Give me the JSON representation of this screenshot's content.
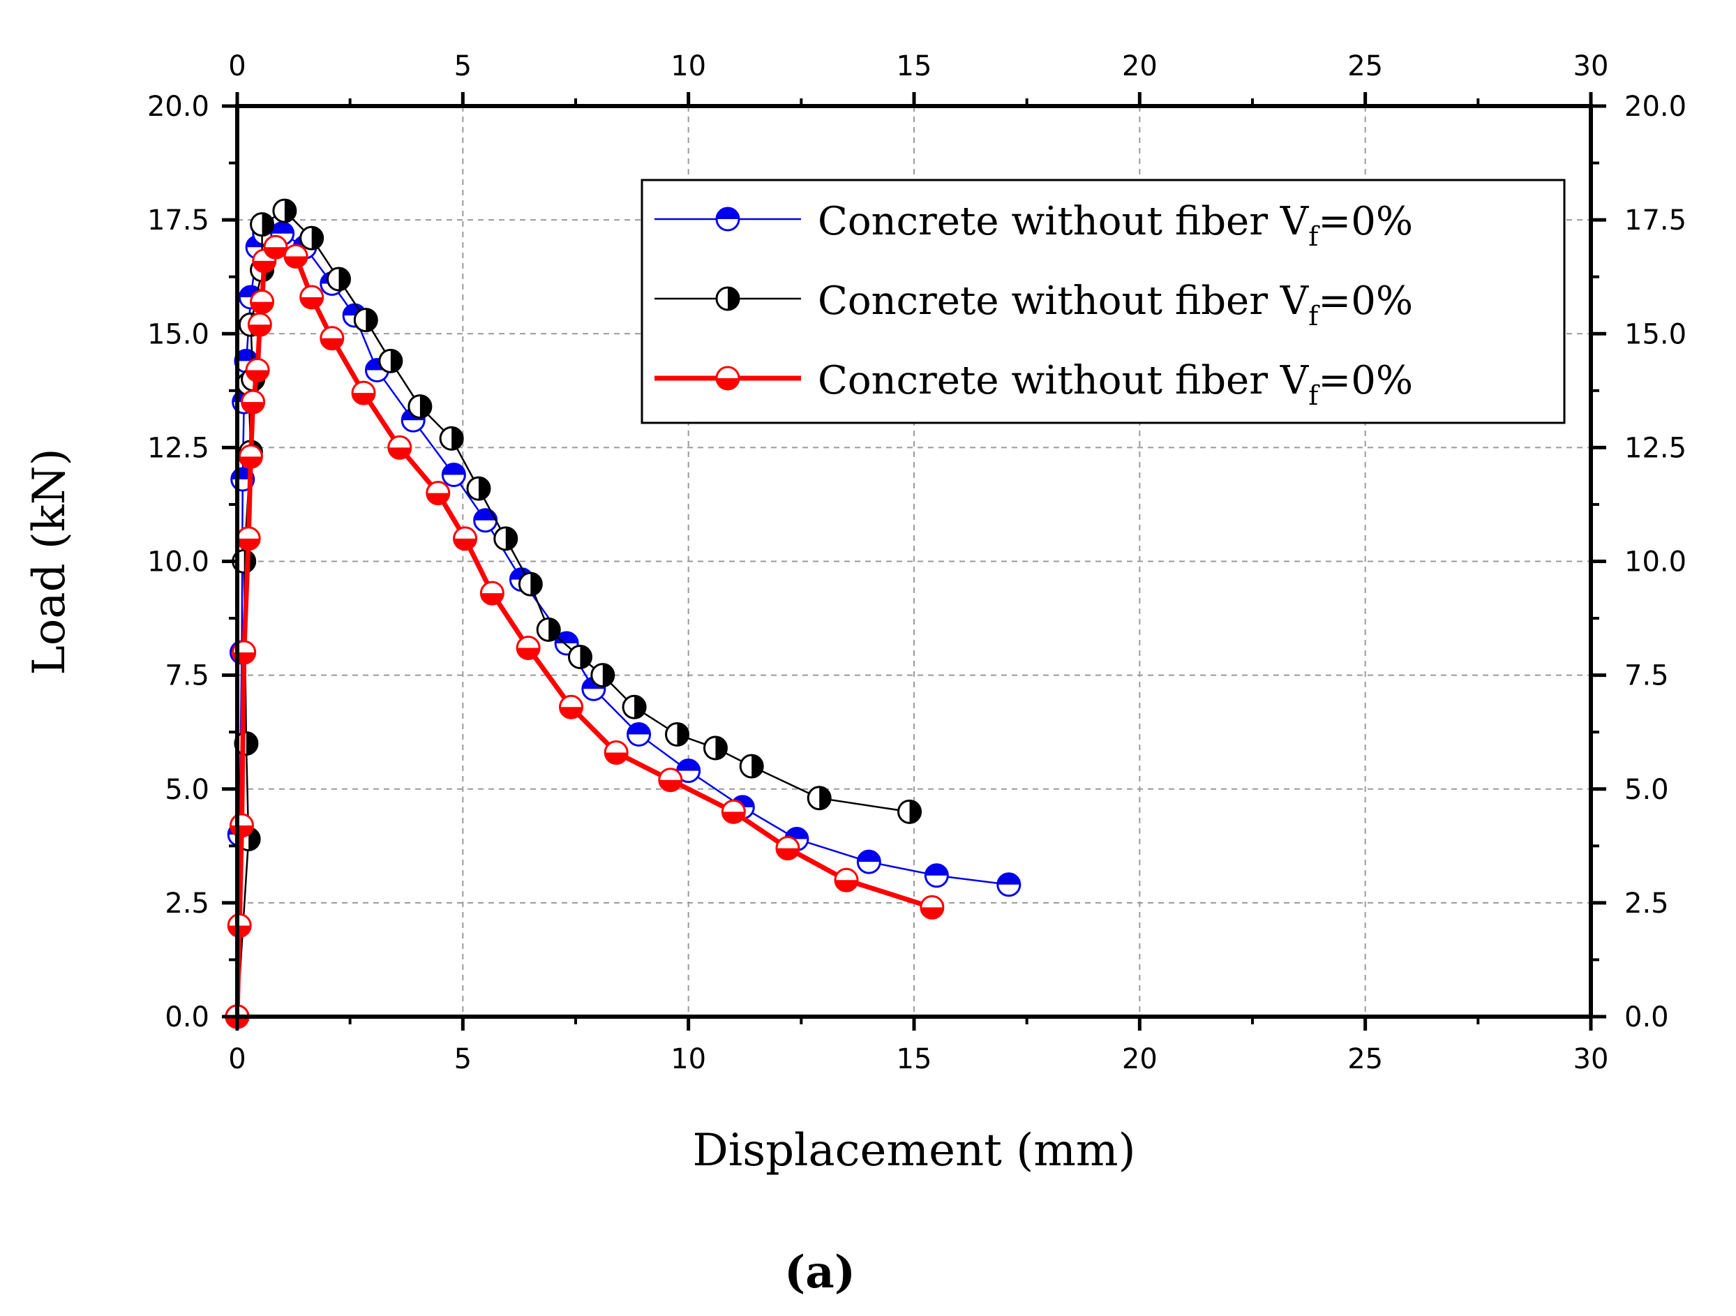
{
  "chart_data": {
    "type": "line",
    "title": "",
    "panel_label": "(a)",
    "xlabel": "Displacement (mm)",
    "ylabel": "Load (kN)",
    "xlim": [
      0,
      30
    ],
    "ylim": [
      0,
      20
    ],
    "x_ticks": [
      "0",
      "5",
      "10",
      "15",
      "20",
      "25",
      "30"
    ],
    "y_ticks": [
      "0.0",
      "2.5",
      "5.0",
      "7.5",
      "10.0",
      "12.5",
      "15.0",
      "17.5",
      "20.0"
    ],
    "grid": true,
    "legend_position": "top-right",
    "series": [
      {
        "name": "Concrete without fiber Vf=0%",
        "legend_main": "Concrete without fiber V",
        "legend_sub": "f",
        "legend_tail": "=0%",
        "color": "#0000ee",
        "marker_fill": "top",
        "x": [
          0.0,
          0.05,
          0.1,
          0.12,
          0.15,
          0.2,
          0.3,
          0.45,
          0.6,
          1.0,
          1.5,
          2.1,
          2.6,
          3.1,
          3.9,
          4.8,
          5.5,
          6.3,
          7.3,
          7.9,
          8.9,
          10.0,
          11.2,
          12.4,
          14.0,
          15.5,
          17.1
        ],
        "y": [
          0.0,
          4.0,
          8.0,
          11.8,
          13.5,
          14.4,
          15.8,
          16.9,
          17.2,
          17.2,
          16.9,
          16.1,
          15.4,
          14.2,
          13.1,
          11.9,
          10.9,
          9.6,
          8.2,
          7.2,
          6.2,
          5.4,
          4.6,
          3.9,
          3.4,
          3.1,
          2.9
        ]
      },
      {
        "name": "Concrete without fiber Vf=0%",
        "legend_main": "Concrete without fiber V",
        "legend_sub": "f",
        "legend_tail": "=0%",
        "color": "#000000",
        "marker_fill": "right",
        "x": [
          0.0,
          0.25,
          0.2,
          0.15,
          0.3,
          0.25,
          0.35,
          0.3,
          0.55,
          0.55,
          1.05,
          1.65,
          2.25,
          2.85,
          3.4,
          4.05,
          4.75,
          5.35,
          5.95,
          6.5,
          6.9,
          7.6,
          8.1,
          8.8,
          9.75,
          10.6,
          11.4,
          12.9,
          14.9
        ],
        "y": [
          0.0,
          3.9,
          6.0,
          10.0,
          12.4,
          13.9,
          14.0,
          15.2,
          16.4,
          17.4,
          17.7,
          17.1,
          16.2,
          15.3,
          14.4,
          13.4,
          12.7,
          11.6,
          10.5,
          9.5,
          8.5,
          7.9,
          7.5,
          6.8,
          6.2,
          5.9,
          5.5,
          4.8,
          4.5
        ]
      },
      {
        "name": "Concrete without fiber Vf=0%",
        "legend_main": "Concrete without fiber V",
        "legend_sub": "f",
        "legend_tail": "=0%",
        "color": "#ff0000",
        "marker_fill": "bottom",
        "x": [
          0.0,
          0.05,
          0.1,
          0.15,
          0.25,
          0.3,
          0.35,
          0.45,
          0.5,
          0.55,
          0.6,
          0.85,
          1.3,
          1.65,
          2.1,
          2.8,
          3.6,
          4.45,
          5.05,
          5.65,
          6.45,
          7.4,
          8.4,
          9.6,
          11.0,
          12.2,
          13.5,
          15.4
        ],
        "y": [
          0.0,
          2.0,
          4.2,
          8.0,
          10.5,
          12.3,
          13.5,
          14.2,
          15.2,
          15.7,
          16.6,
          16.9,
          16.7,
          15.8,
          14.9,
          13.7,
          12.5,
          11.5,
          10.5,
          9.3,
          8.1,
          6.8,
          5.8,
          5.2,
          4.5,
          3.7,
          3.0,
          2.4
        ]
      }
    ]
  }
}
